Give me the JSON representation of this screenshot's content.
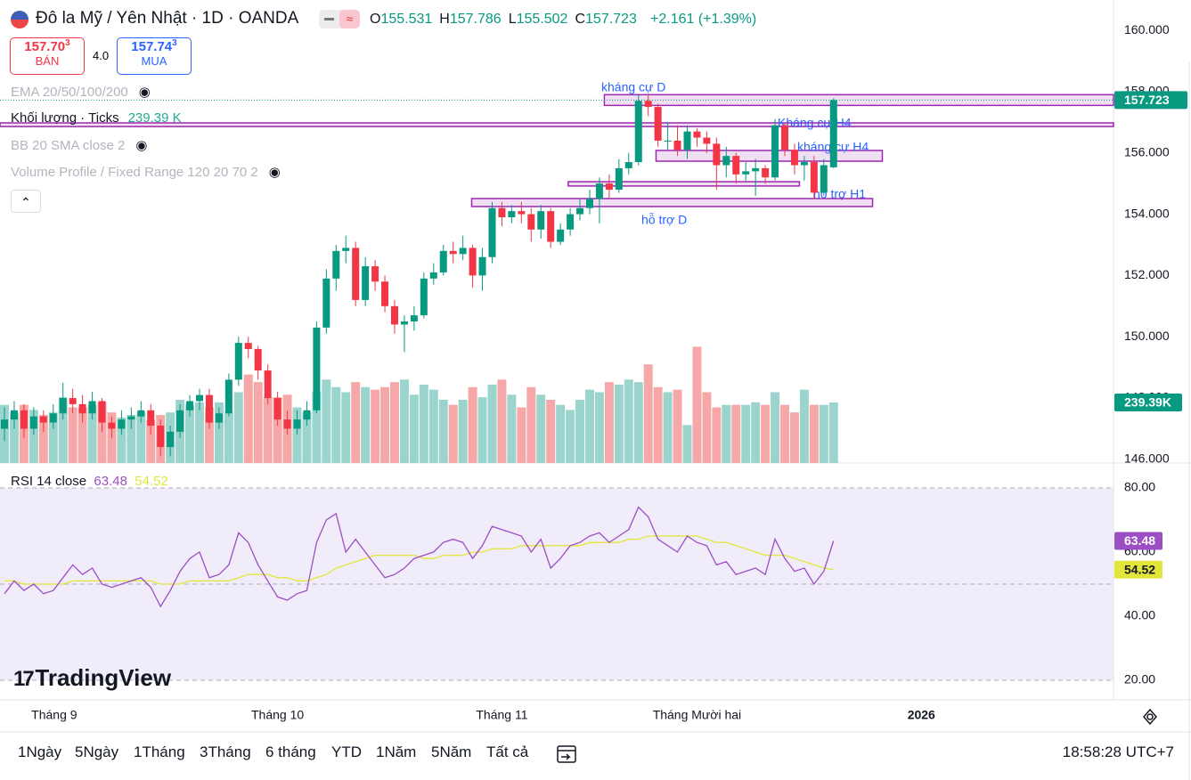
{
  "header": {
    "symbol": "Đô la Mỹ / Yên Nhật · 1D · OANDA",
    "ohlc": [
      {
        "k": "O",
        "v": "155.531"
      },
      {
        "k": "H",
        "v": "157.786"
      },
      {
        "k": "L",
        "v": "155.502"
      },
      {
        "k": "C",
        "v": "157.723"
      }
    ],
    "change": "+2.161 (+1.39%)",
    "sell_main": "157.70",
    "sell_sup": "3",
    "sell_label": "BÁN",
    "spread": "4.0",
    "buy_main": "157.74",
    "buy_sup": "3",
    "buy_label": "MUA"
  },
  "indicators": [
    {
      "name": "EMA 20/50/100/200"
    },
    {
      "name": "Khối lượng · Ticks",
      "value": "239.39 K"
    },
    {
      "name": "BB 20 SMA close 2"
    },
    {
      "name": "Volume Profile / Fixed Range 120 20 70 2"
    }
  ],
  "logo": "TradingView",
  "toolbar": {
    "ranges": [
      "1Ngày",
      "5Ngày",
      "1Tháng",
      "3Tháng",
      "6 tháng",
      "YTD",
      "1Năm",
      "5Năm",
      "Tất cả"
    ],
    "time": "18:58:28 UTC+7"
  },
  "chart_data": {
    "type": "candlestick",
    "up_color": "#089981",
    "down_color": "#f23645",
    "volume_up_color": "#9ad4cd",
    "volume_down_color": "#f6a7a7",
    "zone_color": "#9c27b0",
    "grid": false,
    "xlim": [
      -0.457,
      113.7
    ],
    "xticks": [
      {
        "value": 5.1,
        "label": "Tháng 9"
      },
      {
        "value": 28,
        "label": "Tháng 10"
      },
      {
        "value": 51,
        "label": "Tháng 11"
      },
      {
        "value": 71,
        "label": "Tháng Mười hai"
      },
      {
        "value": 94,
        "label": "2026"
      }
    ],
    "ylim": [
      145.88,
      160.99
    ],
    "yticks": [
      {
        "value": 146,
        "label": "146.000"
      },
      {
        "value": 148,
        "label": "148.000"
      },
      {
        "value": 150,
        "label": "150.000"
      },
      {
        "value": 152,
        "label": "152.000"
      },
      {
        "value": 154,
        "label": "154.000"
      },
      {
        "value": 156,
        "label": "156.000"
      },
      {
        "value": 158,
        "label": "158.000"
      },
      {
        "value": 160,
        "label": "160.000"
      }
    ],
    "candles": [
      [
        147.0,
        147.7,
        146.6,
        147.3
      ],
      [
        147.3,
        147.9,
        147.0,
        147.6
      ],
      [
        147.6,
        147.8,
        146.7,
        147.0
      ],
      [
        147.0,
        147.7,
        146.8,
        147.4
      ],
      [
        147.4,
        147.6,
        146.9,
        147.2
      ],
      [
        147.2,
        147.8,
        147.0,
        147.5
      ],
      [
        147.5,
        148.5,
        147.3,
        148.0
      ],
      [
        148.0,
        148.3,
        147.5,
        147.8
      ],
      [
        147.8,
        148.1,
        147.2,
        147.5
      ],
      [
        147.5,
        148.2,
        147.3,
        147.9
      ],
      [
        147.9,
        148.0,
        146.9,
        147.2
      ],
      [
        147.2,
        147.4,
        146.7,
        147.0
      ],
      [
        147.0,
        147.6,
        146.8,
        147.3
      ],
      [
        147.3,
        147.7,
        147.0,
        147.4
      ],
      [
        147.4,
        147.9,
        147.2,
        147.6
      ],
      [
        147.6,
        147.8,
        146.8,
        147.1
      ],
      [
        147.1,
        147.3,
        146.1,
        146.4
      ],
      [
        146.4,
        147.1,
        146.1,
        146.9
      ],
      [
        146.9,
        147.8,
        146.7,
        147.6
      ],
      [
        147.6,
        148.1,
        147.4,
        147.9
      ],
      [
        147.9,
        148.3,
        147.6,
        148.1
      ],
      [
        148.1,
        148.3,
        147.0,
        147.2
      ],
      [
        147.2,
        147.7,
        147.0,
        147.5
      ],
      [
        147.5,
        148.8,
        147.4,
        148.6
      ],
      [
        148.6,
        150.0,
        148.4,
        149.8
      ],
      [
        149.8,
        150.0,
        149.3,
        149.6
      ],
      [
        149.6,
        149.7,
        148.6,
        148.9
      ],
      [
        148.9,
        149.1,
        147.8,
        148.0
      ],
      [
        148.0,
        148.2,
        147.1,
        147.3
      ],
      [
        147.3,
        147.6,
        146.8,
        147.0
      ],
      [
        147.0,
        147.6,
        146.8,
        147.3
      ],
      [
        147.3,
        147.9,
        147.1,
        147.6
      ],
      [
        147.6,
        150.5,
        147.5,
        150.3
      ],
      [
        150.3,
        152.2,
        150.1,
        151.9
      ],
      [
        151.9,
        153.0,
        151.5,
        152.8
      ],
      [
        152.8,
        153.3,
        152.4,
        152.9
      ],
      [
        152.9,
        153.1,
        151.0,
        151.2
      ],
      [
        151.2,
        152.6,
        151.0,
        152.3
      ],
      [
        152.3,
        152.5,
        151.5,
        151.8
      ],
      [
        151.8,
        152.0,
        150.8,
        151.0
      ],
      [
        151.0,
        151.2,
        150.1,
        150.4
      ],
      [
        150.4,
        150.7,
        149.5,
        150.5
      ],
      [
        150.5,
        151.0,
        150.2,
        150.7
      ],
      [
        150.7,
        152.1,
        150.6,
        151.9
      ],
      [
        151.9,
        152.4,
        151.7,
        152.1
      ],
      [
        152.1,
        153.0,
        152.0,
        152.8
      ],
      [
        152.8,
        153.1,
        152.4,
        152.7
      ],
      [
        152.7,
        153.3,
        152.5,
        152.9
      ],
      [
        152.9,
        153.0,
        151.6,
        152.0
      ],
      [
        152.0,
        152.9,
        151.5,
        152.6
      ],
      [
        152.6,
        154.4,
        152.4,
        154.2
      ],
      [
        154.2,
        154.4,
        153.6,
        153.9
      ],
      [
        153.9,
        154.3,
        153.7,
        154.1
      ],
      [
        154.1,
        154.4,
        153.7,
        154.0
      ],
      [
        154.0,
        154.2,
        153.1,
        153.5
      ],
      [
        153.5,
        154.3,
        153.2,
        154.1
      ],
      [
        154.1,
        154.2,
        152.9,
        153.1
      ],
      [
        153.1,
        153.7,
        153.0,
        153.5
      ],
      [
        153.5,
        154.2,
        153.3,
        154.0
      ],
      [
        154.0,
        154.5,
        153.8,
        154.2
      ],
      [
        154.2,
        154.8,
        154.0,
        154.5
      ],
      [
        154.5,
        155.2,
        153.7,
        155.0
      ],
      [
        155.0,
        155.3,
        154.5,
        154.8
      ],
      [
        154.8,
        155.8,
        154.7,
        155.5
      ],
      [
        155.5,
        156.0,
        155.3,
        155.7
      ],
      [
        155.7,
        157.9,
        155.6,
        157.7
      ],
      [
        157.7,
        157.9,
        157.2,
        157.5
      ],
      [
        157.5,
        157.6,
        156.2,
        156.4
      ],
      [
        156.4,
        157.0,
        156.1,
        156.4
      ],
      [
        156.4,
        156.9,
        155.9,
        156.1
      ],
      [
        156.1,
        156.9,
        155.8,
        156.7
      ],
      [
        156.7,
        156.8,
        156.2,
        156.5
      ],
      [
        156.5,
        156.7,
        156.0,
        156.3
      ],
      [
        156.3,
        156.5,
        154.8,
        155.6
      ],
      [
        155.6,
        156.2,
        155.2,
        155.9
      ],
      [
        155.9,
        156.0,
        155.0,
        155.3
      ],
      [
        155.3,
        155.7,
        155.1,
        155.4
      ],
      [
        155.4,
        155.8,
        154.6,
        155.5
      ],
      [
        155.5,
        155.6,
        155.0,
        155.2
      ],
      [
        155.2,
        157.1,
        155.1,
        156.9
      ],
      [
        156.9,
        157.0,
        155.9,
        156.1
      ],
      [
        156.1,
        156.3,
        155.3,
        155.6
      ],
      [
        155.6,
        155.9,
        155.1,
        155.7
      ],
      [
        155.7,
        155.9,
        154.5,
        154.7
      ],
      [
        154.7,
        155.8,
        154.6,
        155.6
      ],
      [
        155.531,
        157.786,
        155.502,
        157.723
      ]
    ],
    "volume": {
      "vlim": [
        0,
        1831
      ],
      "last_label": "239.39K",
      "values": [
        230,
        200,
        230,
        210,
        190,
        200,
        260,
        220,
        220,
        230,
        240,
        200,
        180,
        190,
        200,
        170,
        190,
        200,
        250,
        230,
        240,
        220,
        240,
        200,
        280,
        350,
        320,
        260,
        260,
        270,
        220,
        200,
        280,
        330,
        300,
        280,
        320,
        300,
        290,
        300,
        320,
        330,
        270,
        310,
        290,
        250,
        230,
        250,
        300,
        260,
        310,
        330,
        270,
        220,
        300,
        270,
        250,
        230,
        210,
        250,
        290,
        280,
        320,
        310,
        330,
        320,
        390,
        300,
        280,
        290,
        150,
        460,
        280,
        220,
        230,
        230,
        230,
        240,
        230,
        280,
        230,
        200,
        290,
        230,
        230,
        239.39
      ]
    },
    "rsi": {
      "title": "RSI 14 close",
      "color": "#9c4fc4",
      "ma_color": "#e3e63a",
      "ylim": [
        14.17,
        87.78
      ],
      "band": [
        20,
        80
      ],
      "levels": [
        20,
        50,
        80
      ],
      "yticks": [
        {
          "value": 20,
          "label": "20.00"
        },
        {
          "value": 40,
          "label": "40.00"
        },
        {
          "value": 60,
          "label": "60.00"
        },
        {
          "value": 80,
          "label": "80.00"
        }
      ],
      "values": [
        47,
        51,
        48,
        50,
        47,
        48,
        52,
        56,
        53,
        55,
        50,
        49,
        50,
        51,
        52,
        49,
        43,
        48,
        54,
        58,
        60,
        52,
        53,
        56,
        66,
        63,
        56,
        51,
        46,
        45,
        47,
        48,
        63,
        70,
        72,
        60,
        64,
        60,
        56,
        52,
        53,
        55,
        58,
        59,
        60,
        63,
        64,
        63,
        58,
        62,
        68,
        67,
        66,
        65,
        60,
        64,
        55,
        58,
        62,
        63,
        65,
        66,
        63,
        65,
        67,
        74,
        71,
        64,
        62,
        60,
        65,
        63,
        62,
        56,
        57,
        53,
        54,
        55,
        53,
        64,
        58,
        54,
        55,
        50,
        54,
        63.48
      ],
      "ma": [
        51,
        51,
        50,
        50,
        50,
        50,
        50,
        51,
        51,
        51,
        51,
        51,
        51,
        51,
        51,
        51,
        50,
        50,
        50,
        51,
        51,
        51,
        51,
        51,
        52,
        53,
        53,
        53,
        52,
        52,
        51,
        51,
        52,
        53,
        55,
        56,
        57,
        58,
        59,
        59,
        59,
        59,
        59,
        58,
        58,
        59,
        59,
        59,
        60,
        60,
        61,
        61,
        61,
        62,
        62,
        62,
        62,
        62,
        62,
        62,
        63,
        63,
        63,
        63,
        64,
        64,
        65,
        65,
        65,
        65,
        65,
        65,
        64,
        63,
        63,
        62,
        61,
        60,
        59,
        59,
        59,
        58,
        57,
        56,
        55,
        54.52
      ]
    },
    "zones": [
      {
        "label": "kháng cự D",
        "x": [
          61.5,
          113.7
        ],
        "y": [
          157.55,
          157.9
        ]
      },
      {
        "label": "Kháng cự H4",
        "x": [
          -0.457,
          113.7
        ],
        "y": [
          156.86,
          156.98
        ]
      },
      {
        "label": "kháng cự H4",
        "x": [
          66.8,
          90
        ],
        "y": [
          155.73,
          156.08
        ]
      },
      {
        "label": "hỗ trợ H1",
        "x": [
          57.8,
          81.5
        ],
        "y": [
          154.92,
          155.06
        ]
      },
      {
        "label": "hỗ trợ D",
        "x": [
          47.9,
          89
        ],
        "y": [
          154.25,
          154.51
        ]
      }
    ]
  }
}
